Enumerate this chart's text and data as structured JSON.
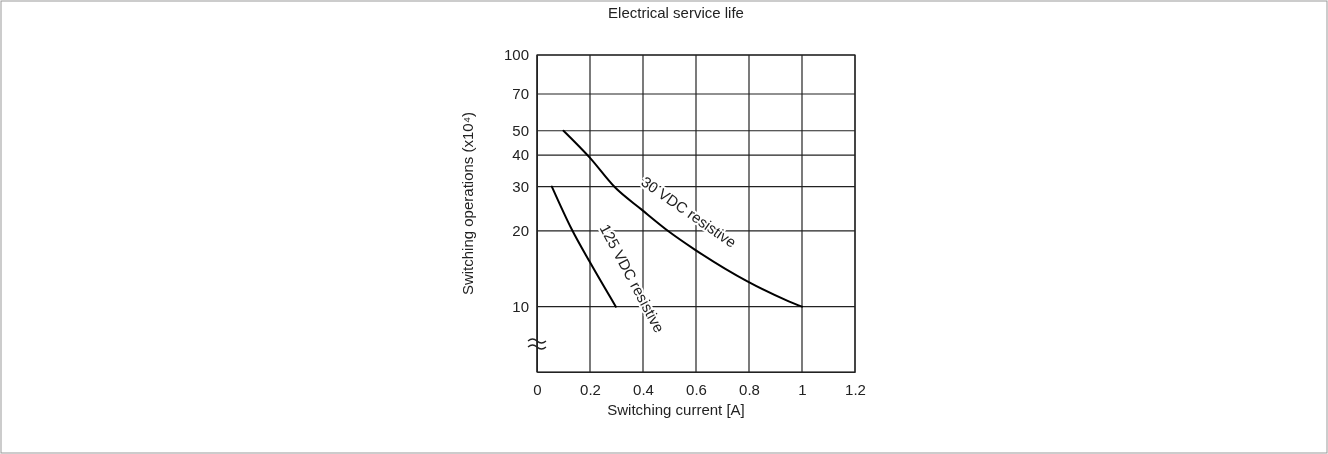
{
  "chart_data": {
    "type": "line",
    "title": "Electrical service life",
    "xlabel": "Switching current [A]",
    "ylabel": "Switching operations (x10⁴)",
    "xlim": [
      0,
      1.2
    ],
    "xticks": [
      0,
      0.2,
      0.4,
      0.6,
      0.8,
      1,
      1.2
    ],
    "ylim": [
      5.5,
      100
    ],
    "yticks": [
      10,
      20,
      30,
      40,
      50,
      70,
      100
    ],
    "log": "y",
    "grid": true,
    "marker": "none",
    "line_style": "solid",
    "series": [
      {
        "color": "#000000",
        "x": [
          0.1,
          0.2,
          0.294,
          0.395,
          0.5,
          0.594,
          0.794,
          0.95,
          1.0
        ],
        "values": [
          50,
          39,
          29.8,
          24.3,
          19.8,
          16.9,
          12.6,
          10.5,
          10
        ]
      },
      {
        "color": "#000000",
        "x": [
          0.056,
          0.131,
          0.2,
          0.2975
        ],
        "values": [
          30,
          20.3,
          15,
          10
        ]
      }
    ],
    "annotations": [
      "30 VDC resistive",
      "125 VDC resistive"
    ]
  }
}
